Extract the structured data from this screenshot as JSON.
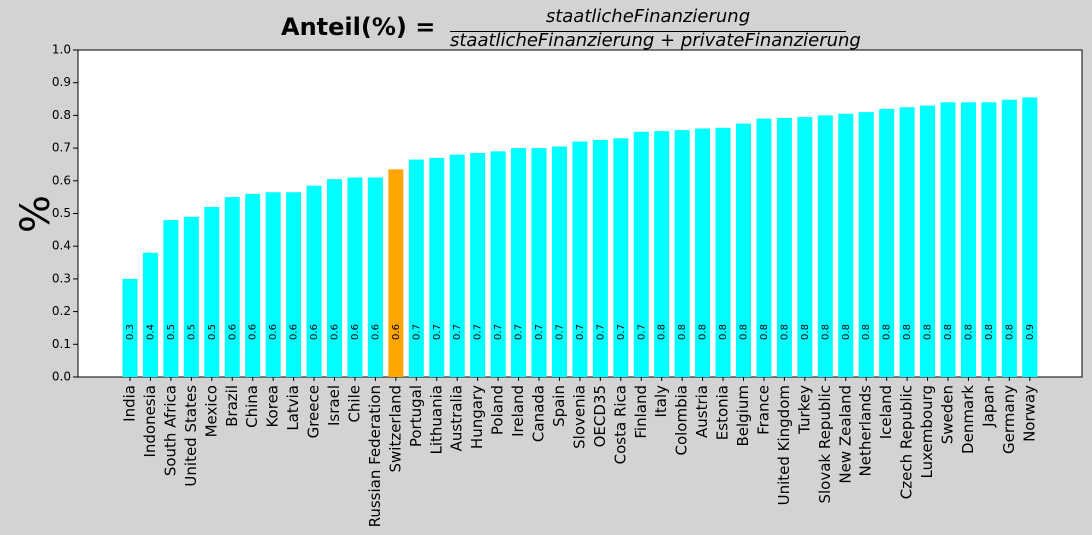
{
  "title": {
    "main": "Anteil(%) =",
    "numerator": "staatlicheFinanzierung",
    "denominator": "staatlicheFinanzierung + privateFinanzierung"
  },
  "colors": {
    "background": "#d3d3d3",
    "plot_background": "#ffffff",
    "bar": "#00ffff",
    "highlight": "#ffa500"
  },
  "chart_data": {
    "type": "bar",
    "title": "Anteil(%) = staatlicheFinanzierung / (staatlicheFinanzierung + privateFinanzierung)",
    "ylabel": "%",
    "xlabel": "",
    "ylim": [
      0,
      1.0
    ],
    "yticks": [
      "0.0",
      "0.1",
      "0.2",
      "0.3",
      "0.4",
      "0.5",
      "0.6",
      "0.7",
      "0.8",
      "0.9",
      "1.0"
    ],
    "grid": false,
    "highlight_category": "Switzerland",
    "categories": [
      "India",
      "Indonesia",
      "South Africa",
      "United States",
      "Mexico",
      "Brazil",
      "China",
      "Korea",
      "Latvia",
      "Greece",
      "Israel",
      "Chile",
      "Russian Federation",
      "Switzerland",
      "Portugal",
      "Lithuania",
      "Australia",
      "Hungary",
      "Poland",
      "Ireland",
      "Canada",
      "Spain",
      "Slovenia",
      "OECD35",
      "Costa Rica",
      "Finland",
      "Italy",
      "Colombia",
      "Austria",
      "Estonia",
      "Belgium",
      "France",
      "United Kingdom",
      "Turkey",
      "Slovak Republic",
      "New Zealand",
      "Netherlands",
      "Iceland",
      "Czech Republic",
      "Luxembourg",
      "Sweden",
      "Denmark",
      "Japan",
      "Germany",
      "Norway"
    ],
    "values": [
      0.3,
      0.38,
      0.48,
      0.49,
      0.52,
      0.55,
      0.56,
      0.565,
      0.565,
      0.585,
      0.605,
      0.61,
      0.61,
      0.635,
      0.665,
      0.67,
      0.68,
      0.685,
      0.69,
      0.7,
      0.7,
      0.705,
      0.72,
      0.725,
      0.73,
      0.75,
      0.752,
      0.755,
      0.76,
      0.762,
      0.775,
      0.79,
      0.792,
      0.795,
      0.8,
      0.805,
      0.81,
      0.82,
      0.825,
      0.83,
      0.84,
      0.84,
      0.84,
      0.848,
      0.855
    ],
    "data_labels": [
      "0.3",
      "0.4",
      "0.5",
      "0.5",
      "0.5",
      "0.6",
      "0.6",
      "0.6",
      "0.6",
      "0.6",
      "0.6",
      "0.6",
      "0.6",
      "0.6",
      "0.7",
      "0.7",
      "0.7",
      "0.7",
      "0.7",
      "0.7",
      "0.7",
      "0.7",
      "0.7",
      "0.7",
      "0.7",
      "0.7",
      "0.8",
      "0.8",
      "0.8",
      "0.8",
      "0.8",
      "0.8",
      "0.8",
      "0.8",
      "0.8",
      "0.8",
      "0.8",
      "0.8",
      "0.8",
      "0.8",
      "0.8",
      "0.8",
      "0.8",
      "0.8",
      "0.9"
    ]
  }
}
